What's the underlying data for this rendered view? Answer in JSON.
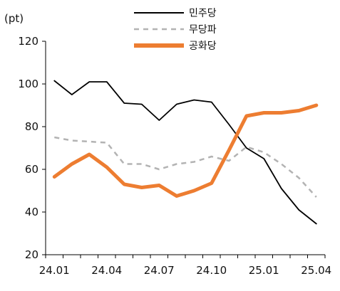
{
  "chart_data": {
    "type": "line",
    "y_unit_label": "(pt)",
    "x": [
      "24.01",
      "24.02",
      "24.03",
      "24.04",
      "24.05",
      "24.06",
      "24.07",
      "24.08",
      "24.09",
      "24.10",
      "24.11",
      "24.12",
      "25.01",
      "25.02",
      "25.03",
      "25.04"
    ],
    "x_tick_labels": [
      "24.01",
      "24.04",
      "24.07",
      "24.10",
      "25.01",
      "25.04"
    ],
    "y_ticks": [
      20,
      40,
      60,
      80,
      100,
      120
    ],
    "ylim": [
      20,
      120
    ],
    "grid": false,
    "legend_position": "top-center",
    "series": [
      {
        "name": "민주당",
        "color": "#000000",
        "style": "solid",
        "values": [
          101.5,
          95,
          101,
          101,
          91,
          90.5,
          83,
          90.5,
          92.5,
          91.5,
          81,
          70,
          65,
          51,
          41,
          34.5
        ]
      },
      {
        "name": "무당파",
        "color": "#b3b3b3",
        "style": "dashed",
        "values": [
          75,
          73.5,
          73,
          72.5,
          62.5,
          62.5,
          60,
          62.5,
          63.5,
          66,
          64,
          70.5,
          68,
          62.5,
          56,
          47
        ]
      },
      {
        "name": "공화당",
        "color": "#ed7d31",
        "style": "solid-thick",
        "values": [
          56.5,
          62.5,
          67,
          61,
          53,
          51.5,
          52.5,
          47.5,
          50,
          53.5,
          69,
          85,
          86.5,
          86.5,
          87.5,
          90
        ]
      }
    ]
  }
}
